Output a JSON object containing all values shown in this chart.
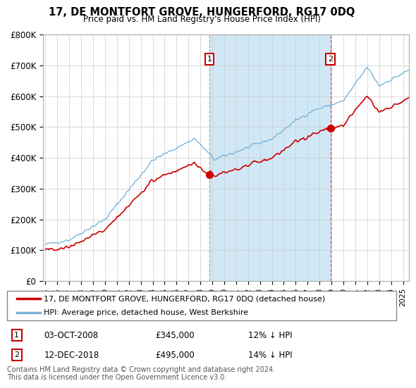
{
  "title": "17, DE MONTFORT GROVE, HUNGERFORD, RG17 0DQ",
  "subtitle": "Price paid vs. HM Land Registry's House Price Index (HPI)",
  "background_color": "#ffffff",
  "plot_bg_color": "#ffffff",
  "grid_color": "#cccccc",
  "hpi_color": "#7ab4d8",
  "price_color": "#cc0000",
  "shade_color": "#d0e8f5",
  "purchase1_x": 2008.75,
  "purchase1_y": 345000,
  "purchase2_x": 2018.92,
  "purchase2_y": 495000,
  "ylim": [
    0,
    800000
  ],
  "xlim": [
    1994.8,
    2025.5
  ],
  "yticks": [
    0,
    100000,
    200000,
    300000,
    400000,
    500000,
    600000,
    700000,
    800000
  ],
  "ytick_labels": [
    "£0",
    "£100K",
    "£200K",
    "£300K",
    "£400K",
    "£500K",
    "£600K",
    "£700K",
    "£800K"
  ],
  "xticks": [
    1995,
    1996,
    1997,
    1998,
    1999,
    2000,
    2001,
    2002,
    2003,
    2004,
    2005,
    2006,
    2007,
    2008,
    2009,
    2010,
    2011,
    2012,
    2013,
    2014,
    2015,
    2016,
    2017,
    2018,
    2019,
    2020,
    2021,
    2022,
    2023,
    2024,
    2025
  ],
  "legend_house": "17, DE MONTFORT GROVE, HUNGERFORD, RG17 0DQ (detached house)",
  "legend_hpi": "HPI: Average price, detached house, West Berkshire",
  "note1_label": "1",
  "note1_date": "03-OCT-2008",
  "note1_price": "£345,000",
  "note1_pct": "12% ↓ HPI",
  "note2_label": "2",
  "note2_date": "12-DEC-2018",
  "note2_price": "£495,000",
  "note2_pct": "14% ↓ HPI",
  "footer": "Contains HM Land Registry data © Crown copyright and database right 2024.\nThis data is licensed under the Open Government Licence v3.0."
}
